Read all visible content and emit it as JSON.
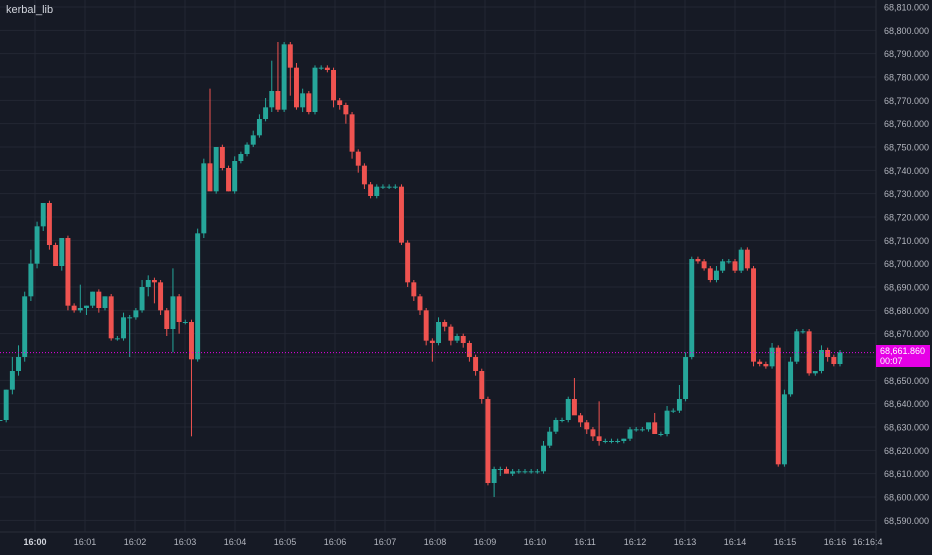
{
  "title": "kerbal_lib",
  "current_price_label": "68,661.860",
  "countdown": "00:07",
  "colors": {
    "background": "#161a25",
    "grid": "#232733",
    "up": "#26a69a",
    "down": "#ef5350",
    "price_line": "#e600e6",
    "axis_text": "#b2b5be"
  },
  "chart_data": {
    "type": "candlestick",
    "title": "kerbal_lib",
    "x_tick_labels": [
      "16:00",
      "16:01",
      "16:02",
      "16:03",
      "16:04",
      "16:05",
      "16:06",
      "16:07",
      "16:08",
      "16:09",
      "16:10",
      "16:11",
      "16:12",
      "16:13",
      "16:14",
      "16:15",
      "16:16",
      "16:16:4"
    ],
    "x_tick_times_min": [
      0,
      1,
      2,
      3,
      4,
      5,
      6,
      7,
      8,
      9,
      10,
      11,
      12,
      13,
      14,
      15,
      16,
      16.65
    ],
    "y_tick_labels": [
      "68,810.000",
      "68,800.000",
      "68,790.000",
      "68,780.000",
      "68,770.000",
      "68,760.000",
      "68,750.000",
      "68,740.000",
      "68,730.000",
      "68,720.000",
      "68,710.000",
      "68,700.000",
      "68,690.000",
      "68,680.000",
      "68,670.000",
      "68,660.000",
      "68,650.000",
      "68,640.000",
      "68,630.000",
      "68,620.000",
      "68,610.000",
      "68,600.000",
      "68,590.000"
    ],
    "ylim": [
      68585,
      68813
    ],
    "xlim": [
      -0.7,
      16.82
    ],
    "current_price": 68661.86,
    "grid": true,
    "candles_ohlc": [
      [
        68633,
        68633,
        68633,
        68633
      ],
      [
        68633,
        68646,
        68632,
        68646
      ],
      [
        68646,
        68660,
        68644,
        68654
      ],
      [
        68654,
        68665,
        68652,
        68660
      ],
      [
        68660,
        68688,
        68658,
        68686
      ],
      [
        68686,
        68706,
        68684,
        68700
      ],
      [
        68700,
        68718,
        68698,
        68716
      ],
      [
        68716,
        68726,
        68714,
        68726
      ],
      [
        68726,
        68727,
        68706,
        68708
      ],
      [
        68708,
        68709,
        68699,
        68699
      ],
      [
        68699,
        68711,
        68697,
        68711
      ],
      [
        68711,
        68712,
        68680,
        68682
      ],
      [
        68682,
        68683,
        68679,
        68680
      ],
      [
        68680,
        68691,
        68679,
        68681
      ],
      [
        68681,
        68682,
        68678,
        68682
      ],
      [
        68682,
        68688,
        68681,
        68688
      ],
      [
        68688,
        68689,
        68679,
        68681
      ],
      [
        68681,
        68686,
        68680,
        68686
      ],
      [
        68686,
        68687,
        68667,
        68668
      ],
      [
        68668,
        68669,
        68667,
        68668
      ],
      [
        68668,
        68679,
        68667,
        68677
      ],
      [
        68677,
        68678,
        68660,
        68677
      ],
      [
        68677,
        68681,
        68676,
        68680
      ],
      [
        68680,
        68693,
        68679,
        68690
      ],
      [
        68690,
        68695,
        68686,
        68693
      ],
      [
        68693,
        68694,
        68683,
        68692
      ],
      [
        68692,
        68693,
        68678,
        68680
      ],
      [
        68680,
        68681,
        68669,
        68672
      ],
      [
        68672,
        68698,
        68662,
        68686
      ],
      [
        68686,
        68687,
        68670,
        68675
      ],
      [
        68675,
        68676,
        68674,
        68675
      ],
      [
        68675,
        68676,
        68626,
        68659
      ],
      [
        68659,
        68715,
        68658,
        68713
      ],
      [
        68713,
        68745,
        68711,
        68743
      ],
      [
        68743,
        68775,
        68733,
        68731
      ],
      [
        68731,
        68750,
        68730,
        68750
      ],
      [
        68750,
        68751,
        68740,
        68741
      ],
      [
        68741,
        68742,
        68731,
        68731
      ],
      [
        68731,
        68746,
        68730,
        68744
      ],
      [
        68744,
        68748,
        68743,
        68747
      ],
      [
        68747,
        68752,
        68746,
        68751
      ],
      [
        68751,
        68757,
        68750,
        68755
      ],
      [
        68755,
        68764,
        68754,
        68762
      ],
      [
        68762,
        68771,
        68761,
        68767
      ],
      [
        68767,
        68787,
        68765,
        68774
      ],
      [
        68774,
        68795,
        68765,
        68766
      ],
      [
        68766,
        68795,
        68765,
        68794
      ],
      [
        68794,
        68795,
        68772,
        68784
      ],
      [
        68784,
        68786,
        68766,
        68767
      ],
      [
        68767,
        68775,
        68765,
        68773
      ],
      [
        68773,
        68774,
        68764,
        68765
      ],
      [
        68765,
        68785,
        68764,
        68784
      ],
      [
        68784,
        68785,
        68783,
        68784
      ],
      [
        68784,
        68785,
        68782,
        68783
      ],
      [
        68783,
        68784,
        68767,
        68770
      ],
      [
        68770,
        68771,
        68766,
        68768
      ],
      [
        68768,
        68769,
        68760,
        68764
      ],
      [
        68764,
        68765,
        68745,
        68748
      ],
      [
        68748,
        68749,
        68739,
        68742
      ],
      [
        68742,
        68743,
        68732,
        68734
      ],
      [
        68734,
        68735,
        68728,
        68729
      ],
      [
        68729,
        68734,
        68728,
        68733
      ],
      [
        68733,
        68734,
        68732,
        68733
      ],
      [
        68733,
        68734,
        68732,
        68733
      ],
      [
        68733,
        68734,
        68732,
        68733
      ],
      [
        68733,
        68734,
        68708,
        68709
      ],
      [
        68709,
        68710,
        68690,
        68692
      ],
      [
        68692,
        68693,
        68684,
        68686
      ],
      [
        68686,
        68687,
        68678,
        68680
      ],
      [
        68680,
        68681,
        68665,
        68667
      ],
      [
        68667,
        68668,
        68658,
        68666
      ],
      [
        68666,
        68677,
        68665,
        68675
      ],
      [
        68675,
        68676,
        68671,
        68673
      ],
      [
        68673,
        68674,
        68665,
        68667
      ],
      [
        68667,
        68670,
        68666,
        68669
      ],
      [
        68669,
        68670,
        68664,
        68666
      ],
      [
        68666,
        68667,
        68658,
        68660
      ],
      [
        68660,
        68661,
        68652,
        68654
      ],
      [
        68654,
        68655,
        68640,
        68642
      ],
      [
        68642,
        68643,
        68605,
        68606
      ],
      [
        68606,
        68613,
        68600,
        68612
      ],
      [
        68612,
        68613,
        68609,
        68612
      ],
      [
        68612,
        68613,
        68610,
        68610
      ],
      [
        68610,
        68612,
        68609,
        68611
      ],
      [
        68611,
        68612,
        68610,
        68611
      ],
      [
        68611,
        68612,
        68610,
        68611
      ],
      [
        68611,
        68612,
        68610,
        68611
      ],
      [
        68611,
        68612,
        68610,
        68611
      ],
      [
        68611,
        68624,
        68610,
        68622
      ],
      [
        68622,
        68630,
        68621,
        68628
      ],
      [
        68628,
        68634,
        68627,
        68633
      ],
      [
        68633,
        68634,
        68632,
        68633
      ],
      [
        68633,
        68643,
        68632,
        68642
      ],
      [
        68642,
        68651,
        68641,
        68635
      ],
      [
        68635,
        68636,
        68630,
        68632
      ],
      [
        68632,
        68633,
        68627,
        68629
      ],
      [
        68629,
        68630,
        68624,
        68626
      ],
      [
        68626,
        68641,
        68622,
        68624
      ],
      [
        68624,
        68625,
        68623,
        68624
      ],
      [
        68624,
        68625,
        68623,
        68624
      ],
      [
        68624,
        68625,
        68623,
        68624
      ],
      [
        68624,
        68625,
        68623,
        68625
      ],
      [
        68625,
        68630,
        68624,
        68629
      ],
      [
        68629,
        68630,
        68628,
        68629
      ],
      [
        68629,
        68630,
        68628,
        68629
      ],
      [
        68629,
        68630,
        68628,
        68632
      ],
      [
        68632,
        68636,
        68631,
        68627
      ],
      [
        68627,
        68628,
        68626,
        68627
      ],
      [
        68627,
        68639,
        68626,
        68637
      ],
      [
        68637,
        68638,
        68636,
        68637
      ],
      [
        68637,
        68648,
        68636,
        68642
      ],
      [
        68642,
        68662,
        68641,
        68660
      ],
      [
        68660,
        68703,
        68659,
        68702
      ],
      [
        68702,
        68703,
        68700,
        68701
      ],
      [
        68701,
        68702,
        68697,
        68698
      ],
      [
        68698,
        68699,
        68692,
        68693
      ],
      [
        68693,
        68699,
        68692,
        68697
      ],
      [
        68697,
        68702,
        68696,
        68701
      ],
      [
        68701,
        68702,
        68700,
        68701
      ],
      [
        68701,
        68702,
        68696,
        68697
      ],
      [
        68697,
        68707,
        68696,
        68706
      ],
      [
        68706,
        68707,
        68697,
        68698
      ],
      [
        68698,
        68699,
        68656,
        68658
      ],
      [
        68658,
        68659,
        68656,
        68657
      ],
      [
        68657,
        68658,
        68655,
        68656
      ],
      [
        68656,
        68666,
        68655,
        68664
      ],
      [
        68664,
        68665,
        68613,
        68614
      ],
      [
        68614,
        68646,
        68613,
        68644
      ],
      [
        68644,
        68660,
        68643,
        68658
      ],
      [
        68658,
        68672,
        68657,
        68671
      ],
      [
        68671,
        68672,
        68670,
        68671
      ],
      [
        68671,
        68672,
        68652,
        68653
      ],
      [
        68653,
        68654,
        68652,
        68654
      ],
      [
        68654,
        68665,
        68653,
        68663
      ],
      [
        68663,
        68664,
        68658,
        68660
      ],
      [
        68660,
        68661,
        68656,
        68657
      ],
      [
        68657,
        68663,
        68656,
        68662
      ]
    ]
  }
}
